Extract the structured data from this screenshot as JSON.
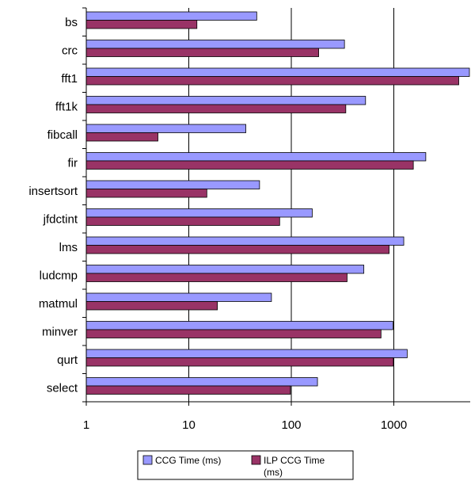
{
  "chart_data": {
    "type": "bar",
    "orientation": "horizontal",
    "x_scale": "log",
    "xlim": [
      1,
      6000
    ],
    "grid": true,
    "legend_position": "bottom",
    "categories": [
      "bs",
      "crc",
      "fft1",
      "fft1k",
      "fibcall",
      "fir",
      "insertsort",
      "jfdctint",
      "lms",
      "ludcmp",
      "matmul",
      "minver",
      "qurt",
      "select"
    ],
    "series": [
      {
        "name": "CCG Time (ms)",
        "color": "#9999ff",
        "values": [
          46,
          330,
          5500,
          530,
          36,
          2050,
          49,
          160,
          1250,
          510,
          64,
          980,
          1350,
          180
        ]
      },
      {
        "name": "ILP CCG Time (ms)",
        "color": "#993366",
        "values": [
          12,
          185,
          4300,
          340,
          5,
          1550,
          15,
          77,
          900,
          350,
          19,
          750,
          990,
          98
        ]
      }
    ],
    "x_tick_labels": [
      "1",
      "10",
      "100",
      "1000"
    ],
    "title": "",
    "xlabel": "",
    "ylabel": ""
  }
}
